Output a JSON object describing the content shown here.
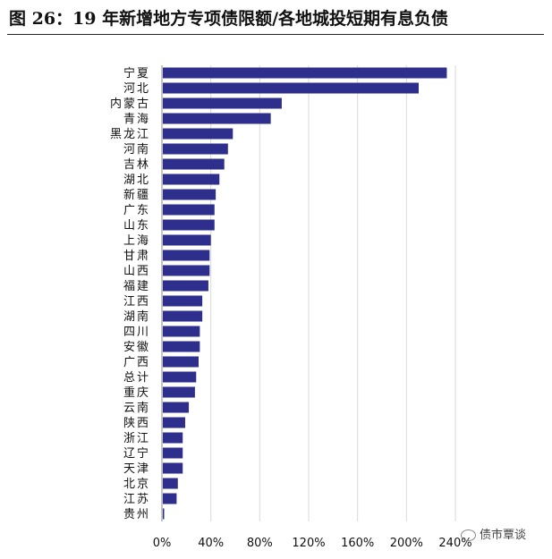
{
  "title": "图 26：19 年新增地方专项债限额/各地城投短期有息负债",
  "watermark": "债市覃谈",
  "chart_data": {
    "type": "bar",
    "orientation": "horizontal",
    "categories": [
      "宁夏",
      "河北",
      "内蒙古",
      "青海",
      "黑龙江",
      "河南",
      "吉林",
      "湖北",
      "新疆",
      "广东",
      "山东",
      "上海",
      "甘肃",
      "山西",
      "福建",
      "江西",
      "湖南",
      "四川",
      "安徽",
      "广西",
      "总计",
      "重庆",
      "云南",
      "陕西",
      "浙江",
      "辽宁",
      "天津",
      "北京",
      "江苏",
      "贵州"
    ],
    "values": [
      233,
      210,
      98,
      89,
      58,
      54,
      51,
      47,
      44,
      43,
      43,
      40,
      39,
      39,
      38,
      33,
      33,
      31,
      31,
      30,
      28,
      27,
      22,
      19,
      17,
      17,
      17,
      13,
      12,
      1
    ],
    "xlim": [
      0,
      240
    ],
    "xticks": [
      "0%",
      "40%",
      "80%",
      "120%",
      "160%",
      "200%",
      "240%"
    ],
    "grid": true,
    "bar_color": "#2e2e8c"
  }
}
